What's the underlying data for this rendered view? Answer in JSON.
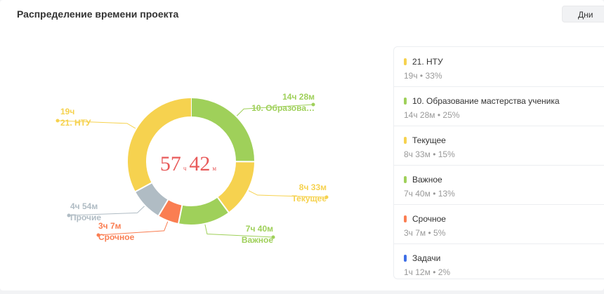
{
  "header": {
    "title": "Распределение времени проекта",
    "period_button": "Дни"
  },
  "donut": {
    "total_hours": "57",
    "hours_unit": "ч",
    "total_minutes": "42",
    "minutes_unit": "м",
    "center_color": "#e85a5a"
  },
  "chart_data": {
    "type": "pie",
    "total": "57ч 42м",
    "slices": [
      {
        "name": "10. Образова…",
        "time": "14ч 28м",
        "minutes": 868,
        "color": "#9fd05a"
      },
      {
        "name": "Текущее",
        "time": "8ч 33м",
        "minutes": 513,
        "color": "#f6d24f"
      },
      {
        "name": "Важное",
        "time": "7ч 40м",
        "minutes": 460,
        "color": "#9fd05a"
      },
      {
        "name": "Срочное",
        "time": "3ч 7м",
        "minutes": 187,
        "color": "#fa7e52"
      },
      {
        "name": "Прочие",
        "time": "4ч 54м",
        "minutes": 294,
        "color": "#b0bcc4"
      },
      {
        "name": "21. НТУ",
        "time": "19ч",
        "minutes": 1140,
        "color": "#f6d24f"
      }
    ]
  },
  "legend": {
    "items": [
      {
        "name": "21. НТУ",
        "meta": "19ч • 33%",
        "color": "#f6d24f"
      },
      {
        "name": "10. Образование мастерства ученика",
        "meta": "14ч 28м • 25%",
        "color": "#9fd05a"
      },
      {
        "name": "Текущее",
        "meta": "8ч 33м • 15%",
        "color": "#f6d24f"
      },
      {
        "name": "Важное",
        "meta": "7ч 40м • 13%",
        "color": "#9fd05a"
      },
      {
        "name": "Срочное",
        "meta": "3ч 7м • 5%",
        "color": "#fa7e52"
      },
      {
        "name": "Задачи",
        "meta": "1ч 12м • 2%",
        "color": "#3f6fe6"
      }
    ]
  }
}
